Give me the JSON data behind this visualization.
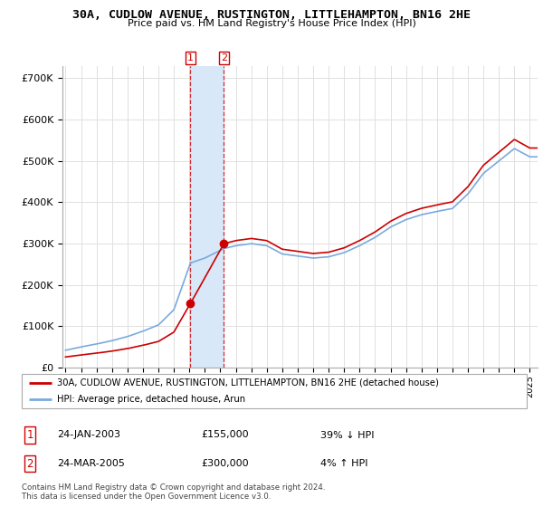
{
  "title": "30A, CUDLOW AVENUE, RUSTINGTON, LITTLEHAMPTON, BN16 2HE",
  "subtitle": "Price paid vs. HM Land Registry's House Price Index (HPI)",
  "legend_line1": "30A, CUDLOW AVENUE, RUSTINGTON, LITTLEHAMPTON, BN16 2HE (detached house)",
  "legend_line2": "HPI: Average price, detached house, Arun",
  "transaction1_date": "24-JAN-2003",
  "transaction1_price": "£155,000",
  "transaction1_hpi": "39% ↓ HPI",
  "transaction2_date": "24-MAR-2005",
  "transaction2_price": "£300,000",
  "transaction2_hpi": "4% ↑ HPI",
  "footnote": "Contains HM Land Registry data © Crown copyright and database right 2024.\nThis data is licensed under the Open Government Licence v3.0.",
  "line_color_property": "#cc0000",
  "line_color_hpi": "#7aaadd",
  "shading_color": "#d8e8f8",
  "marker1_x": 2003.07,
  "marker2_x": 2005.23,
  "marker1_y": 155000,
  "marker2_y": 300000,
  "ylim": [
    0,
    730000
  ],
  "xlim_start": 1994.8,
  "xlim_end": 2025.5
}
